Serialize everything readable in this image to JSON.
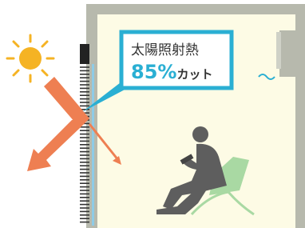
{
  "callout": {
    "title": "太陽照射熱",
    "value": "85%",
    "suffix": "カット"
  }
}
